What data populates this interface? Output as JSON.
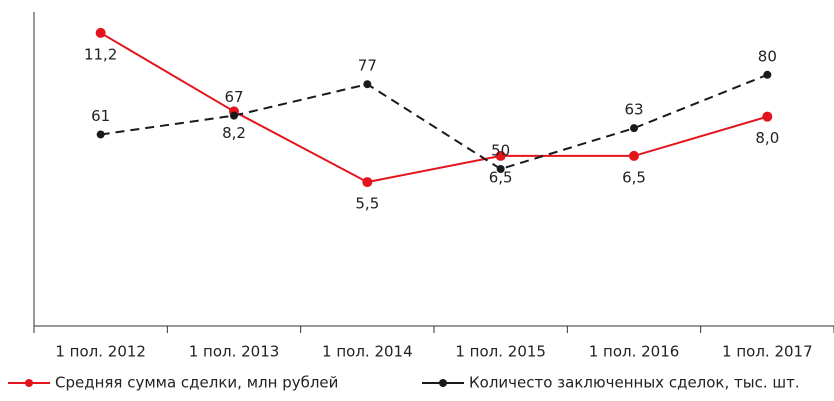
{
  "chart_data": {
    "type": "line",
    "categories": [
      "1 пол. 2012",
      "1 пол. 2013",
      "1 пол. 2014",
      "1 пол. 2015",
      "1 пол. 2016",
      "1 пол. 2017"
    ],
    "ylim": [
      0,
      12
    ],
    "y2lim": [
      0,
      100
    ],
    "legend": "bottom",
    "series": [
      {
        "name": "Средняя сумма сделки, млн рублей",
        "color": "#e3141c",
        "line_style": "solid",
        "axis": "y",
        "values": [
          11.2,
          8.2,
          5.5,
          6.5,
          6.5,
          8.0
        ],
        "value_labels": [
          "11,2",
          "8,2",
          "5,5",
          "6,5",
          "6,5",
          "8,0"
        ]
      },
      {
        "name": "Количесто заключенных сделок, тыс. шт.",
        "color": "#1a1a1a",
        "line_style": "dashed",
        "axis": "y2",
        "values": [
          61,
          67,
          77,
          50,
          63,
          80
        ]
      }
    ]
  }
}
